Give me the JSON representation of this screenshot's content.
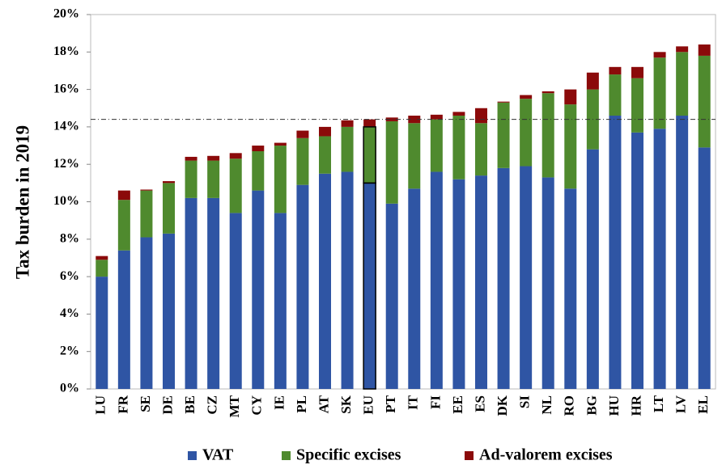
{
  "chart_data": {
    "type": "stacked_bar",
    "y_label": "Tax burden in 2019",
    "categories": [
      "LU",
      "FR",
      "SE",
      "DE",
      "BE",
      "CZ",
      "MT",
      "CY",
      "IE",
      "PL",
      "AT",
      "SK",
      "EU",
      "PT",
      "IT",
      "FI",
      "EE",
      "ES",
      "DK",
      "SI",
      "NL",
      "RO",
      "BG",
      "HU",
      "HR",
      "LT",
      "LV",
      "EL"
    ],
    "series": [
      {
        "name": "VAT",
        "color": "#2f55a4",
        "values": [
          6.0,
          7.4,
          8.1,
          8.3,
          10.2,
          10.2,
          9.4,
          10.6,
          9.4,
          10.9,
          11.5,
          11.6,
          11.0,
          9.9,
          10.7,
          11.6,
          11.2,
          11.4,
          11.8,
          11.9,
          11.3,
          10.7,
          12.8,
          14.6,
          13.7,
          13.9,
          14.6,
          12.9
        ]
      },
      {
        "name": "Specific excises",
        "color": "#4f8a2e",
        "values": [
          0.9,
          2.7,
          2.5,
          2.7,
          2.0,
          2.0,
          2.9,
          2.1,
          3.6,
          2.5,
          2.0,
          2.4,
          3.0,
          4.4,
          3.5,
          2.8,
          3.4,
          2.8,
          3.5,
          3.6,
          4.5,
          4.5,
          3.2,
          2.2,
          2.9,
          3.8,
          3.4,
          4.9
        ]
      },
      {
        "name": "Ad-valorem excises",
        "color": "#8b0a0a",
        "values": [
          0.2,
          0.5,
          0.05,
          0.1,
          0.2,
          0.25,
          0.3,
          0.3,
          0.15,
          0.4,
          0.5,
          0.35,
          0.4,
          0.2,
          0.4,
          0.25,
          0.2,
          0.8,
          0.05,
          0.2,
          0.1,
          0.8,
          0.9,
          0.4,
          0.6,
          0.3,
          0.3,
          0.6
        ]
      }
    ],
    "highlight_category": "EU",
    "reference_line": 14.4,
    "ylim": [
      0,
      20
    ],
    "yticks": [
      {
        "value": 0,
        "label": "0%"
      },
      {
        "value": 2,
        "label": "2%"
      },
      {
        "value": 4,
        "label": "4%"
      },
      {
        "value": 6,
        "label": "6%"
      },
      {
        "value": 8,
        "label": "8%"
      },
      {
        "value": 10,
        "label": "10%"
      },
      {
        "value": 12,
        "label": "12%"
      },
      {
        "value": 14,
        "label": "14%"
      },
      {
        "value": 16,
        "label": "16%"
      },
      {
        "value": 18,
        "label": "18%"
      },
      {
        "value": 20,
        "label": "20%"
      }
    ]
  }
}
